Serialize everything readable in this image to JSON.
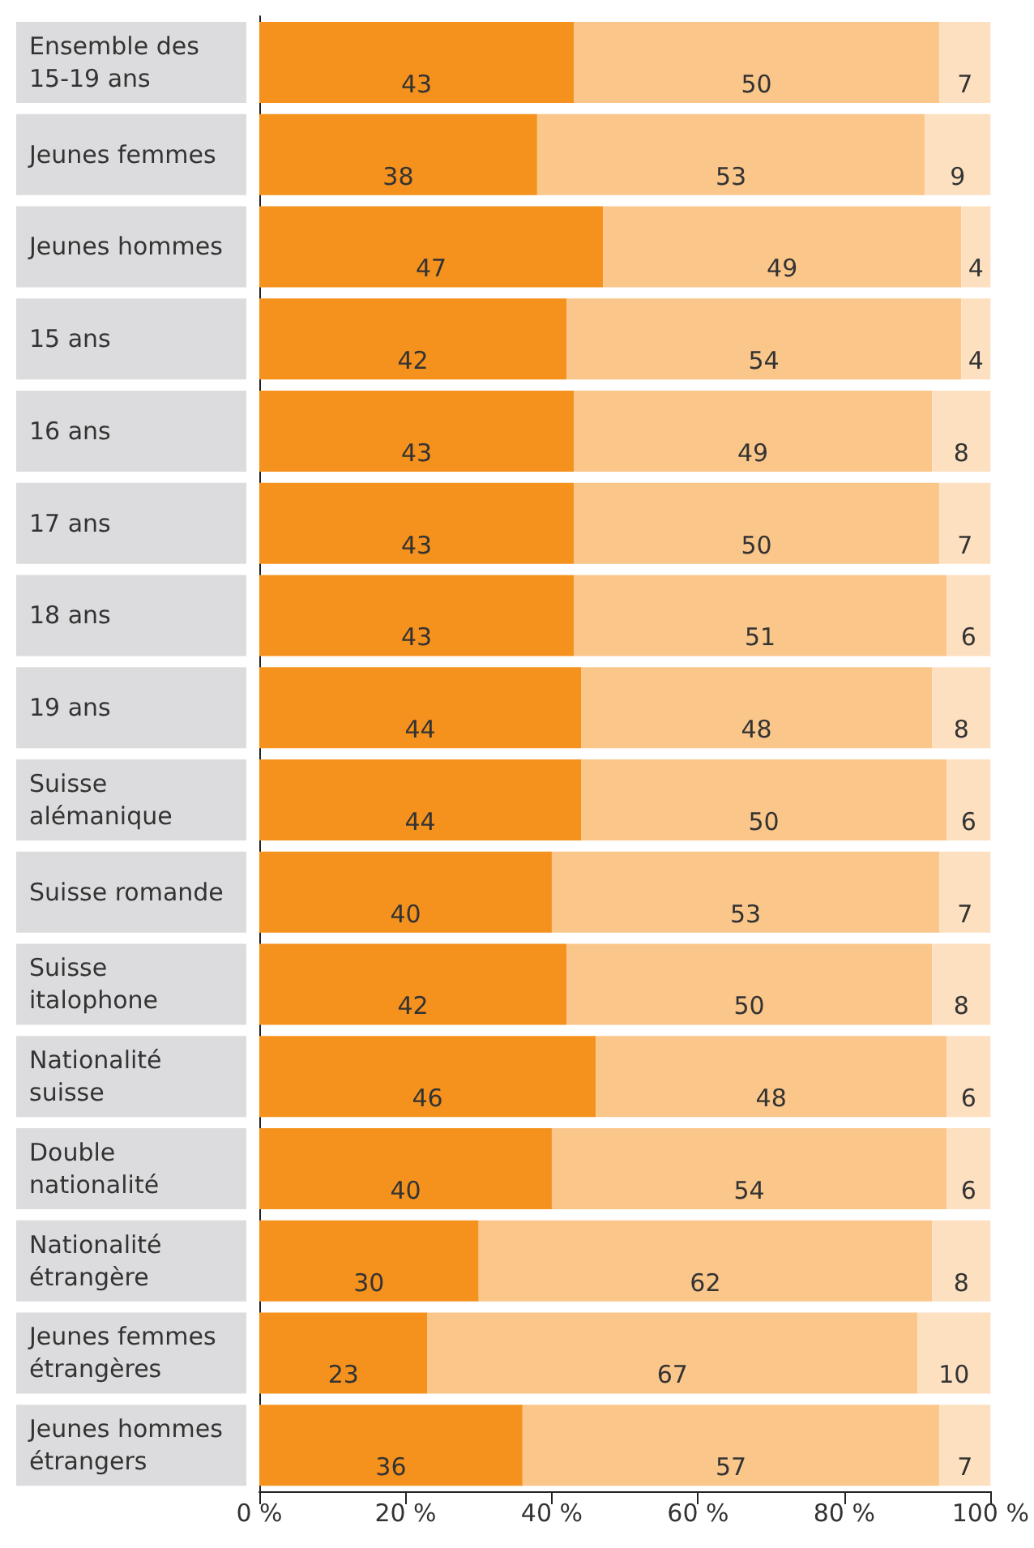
{
  "chart_data": {
    "type": "bar",
    "orientation": "horizontal",
    "stacked": true,
    "data_labels": true,
    "grid": false,
    "categories": [
      "Ensemble des 15-19 ans",
      "Jeunes femmes",
      "Jeunes hommes",
      "15 ans",
      "16 ans",
      "17 ans",
      "18 ans",
      "19 ans",
      "Suisse alémanique",
      "Suisse romande",
      "Suisse italophone",
      "Nationalité suisse",
      "Double nationalité",
      "Nationalité étrangère",
      "Jeunes femmes étrangères",
      "Jeunes hommes étrangers"
    ],
    "series": [
      {
        "color": "#f5921e",
        "values": [
          43,
          38,
          47,
          42,
          43,
          43,
          43,
          44,
          44,
          40,
          42,
          46,
          40,
          30,
          23,
          36
        ]
      },
      {
        "color": "#fbc68a",
        "values": [
          50,
          53,
          49,
          54,
          49,
          50,
          51,
          48,
          50,
          53,
          50,
          48,
          54,
          62,
          67,
          57
        ]
      },
      {
        "color": "#fde0c0",
        "values": [
          7,
          9,
          4,
          4,
          8,
          7,
          6,
          8,
          6,
          7,
          8,
          6,
          6,
          8,
          10,
          7
        ]
      }
    ],
    "xlim": [
      0,
      100
    ],
    "xticks": [
      {
        "value": 0,
        "label": "0 %"
      },
      {
        "value": 20,
        "label": "20 %"
      },
      {
        "value": 40,
        "label": "40 %"
      },
      {
        "value": 60,
        "label": "60 %"
      },
      {
        "value": 80,
        "label": "80 %"
      },
      {
        "value": 100,
        "label": "100 %"
      }
    ]
  }
}
